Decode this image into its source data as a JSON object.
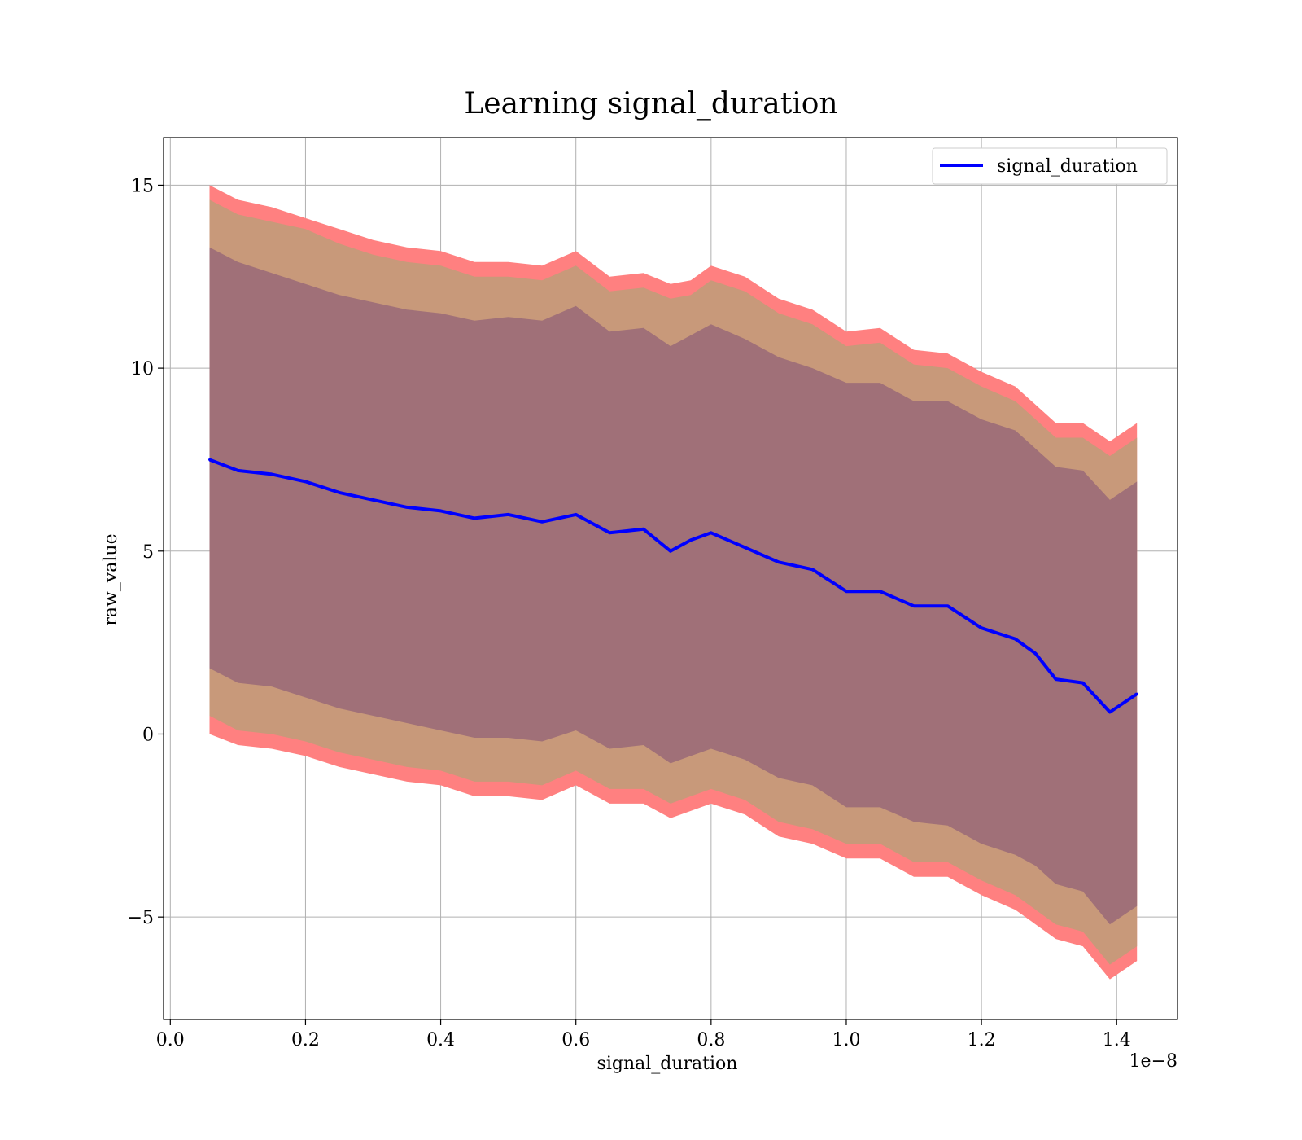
{
  "chart_data": {
    "type": "line",
    "title": "Learning signal_duration",
    "xlabel": "signal_duration",
    "ylabel": "raw_value",
    "x_scale_label": "1e−8",
    "xlim": [
      -0.01,
      1.49
    ],
    "ylim": [
      -7.8,
      16.3
    ],
    "x_ticks": [
      0.0,
      0.2,
      0.4,
      0.6,
      0.8,
      1.0,
      1.2,
      1.4
    ],
    "x_tick_labels": [
      "0.0",
      "0.2",
      "0.4",
      "0.6",
      "0.8",
      "1.0",
      "1.2",
      "1.4"
    ],
    "y_ticks": [
      -5,
      0,
      5,
      10,
      15
    ],
    "y_tick_labels": [
      "−5",
      "0",
      "5",
      "10",
      "15"
    ],
    "grid": true,
    "legend": {
      "position": "top-right",
      "entries": [
        "signal_duration"
      ]
    },
    "series": [
      {
        "name": "signal_duration",
        "color": "#0000ff",
        "x": [
          0.058,
          0.1,
          0.15,
          0.2,
          0.25,
          0.3,
          0.35,
          0.4,
          0.45,
          0.5,
          0.55,
          0.6,
          0.65,
          0.7,
          0.74,
          0.77,
          0.8,
          0.85,
          0.9,
          0.95,
          1.0,
          1.05,
          1.1,
          1.15,
          1.2,
          1.25,
          1.28,
          1.31,
          1.35,
          1.39,
          1.43
        ],
        "y": [
          7.5,
          7.2,
          7.1,
          6.9,
          6.6,
          6.4,
          6.2,
          6.1,
          5.9,
          6.0,
          5.8,
          6.0,
          5.5,
          5.6,
          5.0,
          5.3,
          5.5,
          5.1,
          4.7,
          4.5,
          3.9,
          3.9,
          3.5,
          3.5,
          2.9,
          2.6,
          2.2,
          1.5,
          1.4,
          0.6,
          1.1
        ]
      }
    ],
    "bands": [
      {
        "name": "outer band",
        "color": "#ff8080",
        "upper": [
          15.0,
          14.6,
          14.4,
          14.1,
          13.8,
          13.5,
          13.3,
          13.2,
          12.9,
          12.9,
          12.8,
          13.2,
          12.5,
          12.6,
          12.3,
          12.4,
          12.8,
          12.5,
          11.9,
          11.6,
          11.0,
          11.1,
          10.5,
          10.4,
          9.9,
          9.5,
          9.0,
          8.5,
          8.5,
          8.0,
          8.5
        ],
        "lower": [
          0.0,
          -0.3,
          -0.4,
          -0.6,
          -0.9,
          -1.1,
          -1.3,
          -1.4,
          -1.7,
          -1.7,
          -1.8,
          -1.4,
          -1.9,
          -1.9,
          -2.3,
          -2.1,
          -1.9,
          -2.2,
          -2.8,
          -3.0,
          -3.4,
          -3.4,
          -3.9,
          -3.9,
          -4.4,
          -4.8,
          -5.2,
          -5.6,
          -5.8,
          -6.7,
          -6.2
        ]
      },
      {
        "name": "middle band",
        "color": "#c8997a",
        "upper": [
          14.6,
          14.2,
          14.0,
          13.8,
          13.4,
          13.1,
          12.9,
          12.8,
          12.5,
          12.5,
          12.4,
          12.8,
          12.1,
          12.2,
          11.9,
          12.0,
          12.4,
          12.1,
          11.5,
          11.2,
          10.6,
          10.7,
          10.1,
          10.0,
          9.5,
          9.1,
          8.6,
          8.1,
          8.1,
          7.6,
          8.1
        ],
        "lower": [
          0.5,
          0.1,
          0.0,
          -0.2,
          -0.5,
          -0.7,
          -0.9,
          -1.0,
          -1.3,
          -1.3,
          -1.4,
          -1.0,
          -1.5,
          -1.5,
          -1.9,
          -1.7,
          -1.5,
          -1.8,
          -2.4,
          -2.6,
          -3.0,
          -3.0,
          -3.5,
          -3.5,
          -4.0,
          -4.4,
          -4.8,
          -5.2,
          -5.4,
          -6.3,
          -5.8
        ]
      },
      {
        "name": "inner band",
        "color": "#a07078",
        "upper": [
          13.3,
          12.9,
          12.6,
          12.3,
          12.0,
          11.8,
          11.6,
          11.5,
          11.3,
          11.4,
          11.3,
          11.7,
          11.0,
          11.1,
          10.6,
          10.9,
          11.2,
          10.8,
          10.3,
          10.0,
          9.6,
          9.6,
          9.1,
          9.1,
          8.6,
          8.3,
          7.8,
          7.3,
          7.2,
          6.4,
          6.9
        ],
        "lower": [
          1.8,
          1.4,
          1.3,
          1.0,
          0.7,
          0.5,
          0.3,
          0.1,
          -0.1,
          -0.1,
          -0.2,
          0.1,
          -0.4,
          -0.3,
          -0.8,
          -0.6,
          -0.4,
          -0.7,
          -1.2,
          -1.4,
          -2.0,
          -2.0,
          -2.4,
          -2.5,
          -3.0,
          -3.3,
          -3.6,
          -4.1,
          -4.3,
          -5.2,
          -4.7
        ]
      }
    ]
  }
}
